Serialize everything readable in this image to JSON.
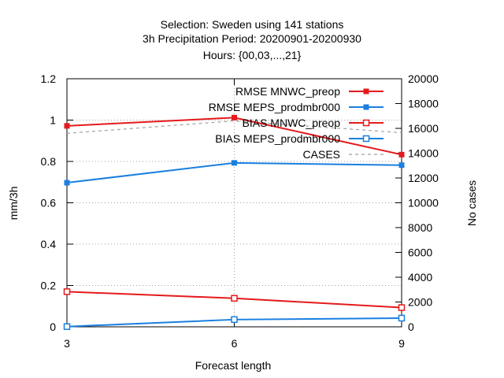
{
  "chart_data": {
    "type": "line",
    "title_lines": [
      "Selection: Sweden using   141 stations",
      "3h Precipitation   Period: 20200901-20200930",
      "Hours: {00,03,...,21}"
    ],
    "xlabel": "Forecast length",
    "ylabel": "mm/3h",
    "y2label": "No cases",
    "x": [
      3,
      6,
      9
    ],
    "xlim": [
      3,
      9
    ],
    "ylim": [
      0,
      1.2
    ],
    "y2lim": [
      0,
      20000
    ],
    "xticks": [
      3,
      6,
      9
    ],
    "yticks": [
      0,
      0.2,
      0.4,
      0.6,
      0.8,
      1,
      1.2
    ],
    "y2ticks": [
      0,
      2000,
      4000,
      6000,
      8000,
      10000,
      12000,
      14000,
      16000,
      18000,
      20000
    ],
    "grid": true,
    "legend_position": "top-right",
    "series": [
      {
        "name": "RMSE MNWC_preop",
        "values": [
          0.972,
          1.012,
          0.833
        ],
        "color": "#e41a1c",
        "marker": "filled-square",
        "axis": "y"
      },
      {
        "name": "RMSE MEPS_prodmbr000",
        "values": [
          0.697,
          0.793,
          0.782
        ],
        "color": "#1a7fe0",
        "marker": "filled-square",
        "axis": "y"
      },
      {
        "name": "BIAS MNWC_preop",
        "values": [
          0.17,
          0.138,
          0.093
        ],
        "color": "#e41a1c",
        "marker": "open-square",
        "axis": "y"
      },
      {
        "name": "BIAS MEPS_prodmbr000",
        "values": [
          0.001,
          0.035,
          0.042
        ],
        "color": "#1a7fe0",
        "marker": "open-square",
        "axis": "y"
      },
      {
        "name": "CASES",
        "values": [
          15600,
          16600,
          15650
        ],
        "color": "#a0a0a0",
        "marker": "none",
        "dash": true,
        "axis": "y2"
      }
    ]
  }
}
